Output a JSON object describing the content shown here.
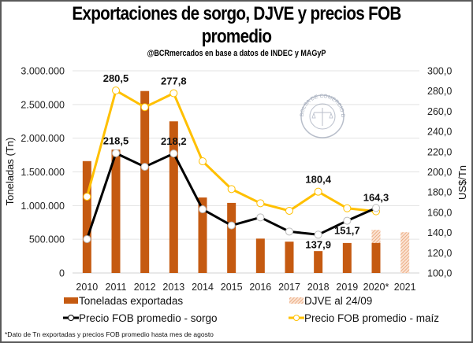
{
  "chart_data": {
    "type": "bar+line",
    "title_line1": "Exportaciones de sorgo, DJVE y precios FOB",
    "title_line2": "promedio",
    "subtitle": "@BCRmercados en base a datos de INDEC y MAGyP",
    "categories": [
      "2010",
      "2011",
      "2012",
      "2013",
      "2014",
      "2015",
      "2016",
      "2017",
      "2018",
      "2019",
      "2020*",
      "2021"
    ],
    "y_left": {
      "label": "Toneladas (Tn)",
      "range": [
        0,
        3000000
      ],
      "ticks": [
        0,
        500000,
        1000000,
        1500000,
        2000000,
        2500000,
        3000000
      ],
      "tick_labels": [
        "0",
        "500.000",
        "1.000.000",
        "1.500.000",
        "2.000.000",
        "2.500.000",
        "3.000.000"
      ]
    },
    "y_right": {
      "label": "US$/Tn",
      "range": [
        100,
        300
      ],
      "ticks": [
        100,
        120,
        140,
        160,
        180,
        200,
        220,
        240,
        260,
        280,
        300
      ],
      "tick_labels": [
        "100,0",
        "120,0",
        "140,0",
        "160,0",
        "180,0",
        "200,0",
        "220,0",
        "240,0",
        "260,0",
        "280,0",
        "300,0"
      ]
    },
    "grid": true,
    "legend_position": "bottom",
    "series": [
      {
        "name": "Toneladas exportadas",
        "type": "bar",
        "axis": "left",
        "color": "#C55A11",
        "values": [
          1660000,
          1830000,
          2700000,
          2250000,
          1120000,
          1040000,
          510000,
          465000,
          325000,
          445000,
          445000,
          null
        ]
      },
      {
        "name": "DJVE al 24/09",
        "type": "bar-hatched",
        "axis": "left",
        "color": "#F4B183",
        "values": [
          null,
          null,
          null,
          null,
          null,
          null,
          null,
          null,
          null,
          null,
          640000,
          605000
        ]
      },
      {
        "name": "Precio FOB promedio - sorgo",
        "type": "line",
        "axis": "right",
        "color": "#000000",
        "values": [
          133.5,
          218.5,
          205.0,
          218.2,
          163.0,
          147.0,
          155.0,
          141.0,
          137.9,
          151.7,
          164.3,
          null
        ],
        "data_labels": {
          "1": "218,5",
          "3": "218,2",
          "8": "137,9",
          "9": "151,7",
          "10": "164,3"
        }
      },
      {
        "name": "Precio FOB promedio - maíz",
        "type": "line",
        "axis": "right",
        "color": "#FFC000",
        "values": [
          175.5,
          280.5,
          264.0,
          277.8,
          210.5,
          183.0,
          169.0,
          161.5,
          180.4,
          164.0,
          161.0,
          null
        ],
        "data_labels": {
          "1": "280,5",
          "3": "277,8",
          "8": "180,4"
        }
      }
    ],
    "footnote": "*Dato de Tn exportadas y precios FOB promedio hasta mes de agosto",
    "watermark": "BOLSA DE COMERCIO DE ROSARIO"
  }
}
